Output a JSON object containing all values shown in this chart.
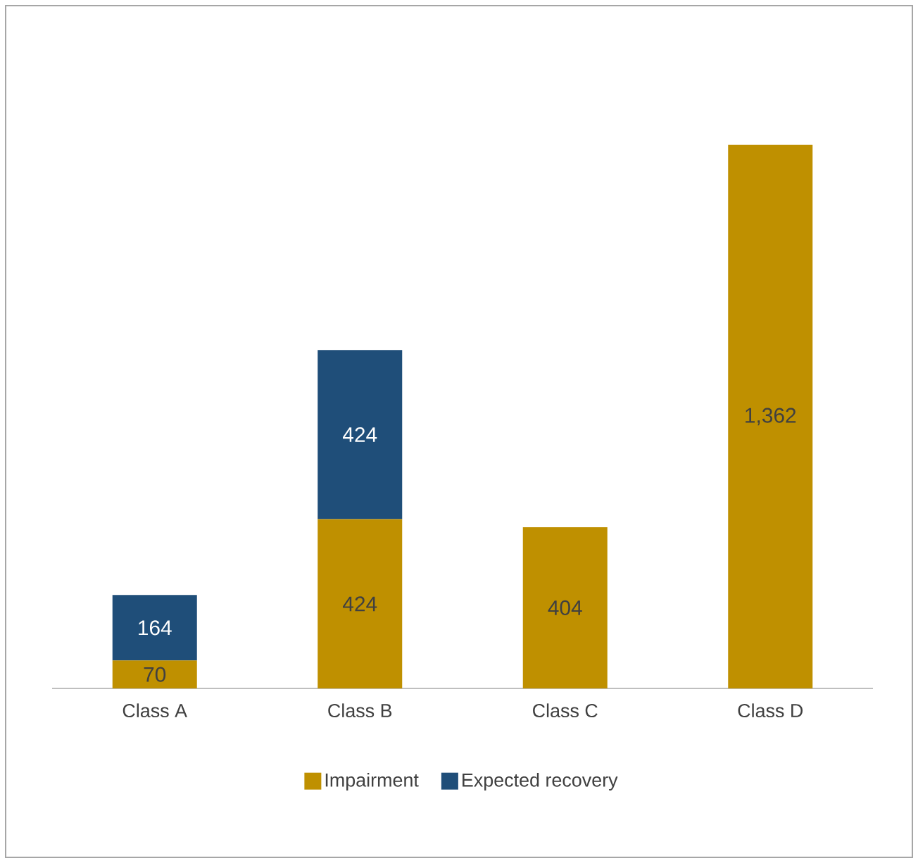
{
  "chart_data": {
    "type": "bar",
    "stacked": true,
    "categories": [
      "Class A",
      "Class B",
      "Class C",
      "Class D"
    ],
    "series": [
      {
        "name": "Impairment",
        "color": "#bf9000",
        "values": [
          70,
          424,
          404,
          1362
        ],
        "value_labels": [
          "70",
          "424",
          "404",
          "1,362"
        ]
      },
      {
        "name": "Expected recovery",
        "color": "#1f4e79",
        "values": [
          164,
          424,
          null,
          null
        ],
        "value_labels": [
          "164",
          "424",
          null,
          null
        ]
      }
    ],
    "legend": "bottom"
  }
}
